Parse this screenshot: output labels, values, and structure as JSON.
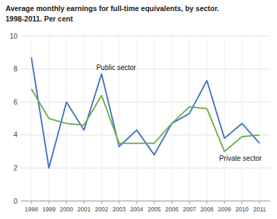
{
  "chart_data": {
    "type": "line",
    "title": "Average monthly earnings for full-time equivalents, by sector.",
    "subtitle": "1998-2011. Per cent",
    "x": [
      1998,
      1999,
      2000,
      2001,
      2002,
      2003,
      2004,
      2005,
      2006,
      2007,
      2008,
      2009,
      2010,
      2011
    ],
    "series": [
      {
        "color": "#4472C4",
        "values": [
          8.7,
          2.0,
          6.0,
          4.3,
          7.7,
          3.3,
          4.3,
          2.8,
          4.7,
          5.3,
          7.3,
          3.8,
          4.7,
          3.5
        ]
      },
      {
        "color": "#70AD47",
        "values": [
          6.8,
          5.0,
          4.7,
          4.6,
          6.4,
          3.5,
          3.5,
          3.5,
          4.7,
          5.7,
          5.6,
          3.0,
          3.9,
          4.0
        ]
      }
    ],
    "annotations": [
      {
        "text": "Public sector",
        "x": 2001.7,
        "y": 7.95
      },
      {
        "text": "Private sector",
        "x": 2008.7,
        "y": 2.45
      }
    ],
    "xlim": [
      1997.4,
      2011.6
    ],
    "xticks": [
      1998,
      1999,
      2000,
      2001,
      2002,
      2003,
      2004,
      2005,
      2006,
      2007,
      2008,
      2009,
      2010,
      2011
    ],
    "ylim": [
      0,
      10
    ],
    "yticks": [
      0,
      2,
      4,
      6,
      8,
      10
    ],
    "grid": true
  }
}
